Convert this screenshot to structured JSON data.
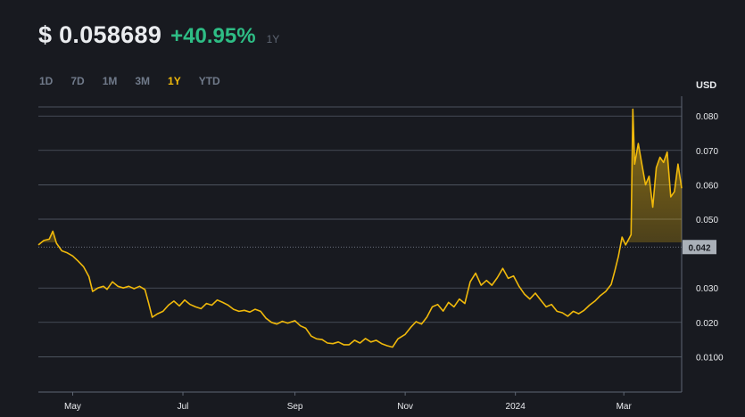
{
  "header": {
    "price": "$ 0.058689",
    "change": "+40.95%",
    "period": "1Y"
  },
  "tabs": [
    "1D",
    "7D",
    "1M",
    "3M",
    "1Y",
    "YTD"
  ],
  "active_tab": "1Y",
  "colors": {
    "line": "#f0b90b",
    "up": "#2ebd85",
    "grid": "#5e6673",
    "background": "#181a20"
  },
  "chart_data": {
    "type": "area",
    "title": "",
    "xlabel": "",
    "ylabel": "USD",
    "ylim": [
      0.0,
      0.0854
    ],
    "yticks": [
      {
        "value": 0.08,
        "label": "0.080"
      },
      {
        "value": 0.07,
        "label": "0.070"
      },
      {
        "value": 0.06,
        "label": "0.060"
      },
      {
        "value": 0.05,
        "label": "0.050"
      },
      {
        "value": 0.03,
        "label": "0.030"
      },
      {
        "value": 0.02,
        "label": "0.020"
      },
      {
        "value": 0.01,
        "label": "0.0100"
      }
    ],
    "current_marker": {
      "value": 0.0419,
      "label": "0.042"
    },
    "xticks": [
      {
        "date": "2023-05-01",
        "label": "May"
      },
      {
        "date": "2023-07-01",
        "label": "Jul"
      },
      {
        "date": "2023-09-01",
        "label": "Sep"
      },
      {
        "date": "2023-11-01",
        "label": "Nov"
      },
      {
        "date": "2024-01-01",
        "label": "2024"
      },
      {
        "date": "2024-03-01",
        "label": "Mar"
      }
    ],
    "xrange": [
      "2023-04-12",
      "2024-04-02"
    ],
    "series": [
      {
        "values": [
          [
            "2023-04-12",
            0.0425
          ],
          [
            "2023-04-15",
            0.0438
          ],
          [
            "2023-04-18",
            0.0442
          ],
          [
            "2023-04-20",
            0.0465
          ],
          [
            "2023-04-22",
            0.043
          ],
          [
            "2023-04-25",
            0.0408
          ],
          [
            "2023-04-28",
            0.0402
          ],
          [
            "2023-05-01",
            0.0393
          ],
          [
            "2023-05-04",
            0.0378
          ],
          [
            "2023-05-07",
            0.0362
          ],
          [
            "2023-05-10",
            0.0333
          ],
          [
            "2023-05-12",
            0.029
          ],
          [
            "2023-05-15",
            0.03
          ],
          [
            "2023-05-18",
            0.0305
          ],
          [
            "2023-05-20",
            0.0296
          ],
          [
            "2023-05-23",
            0.0318
          ],
          [
            "2023-05-26",
            0.0305
          ],
          [
            "2023-05-29",
            0.03
          ],
          [
            "2023-06-01",
            0.0305
          ],
          [
            "2023-06-04",
            0.0298
          ],
          [
            "2023-06-07",
            0.0305
          ],
          [
            "2023-06-10",
            0.0295
          ],
          [
            "2023-06-12",
            0.0257
          ],
          [
            "2023-06-14",
            0.0215
          ],
          [
            "2023-06-17",
            0.0225
          ],
          [
            "2023-06-20",
            0.0232
          ],
          [
            "2023-06-23",
            0.025
          ],
          [
            "2023-06-26",
            0.0262
          ],
          [
            "2023-06-29",
            0.0248
          ],
          [
            "2023-07-02",
            0.0265
          ],
          [
            "2023-07-05",
            0.0252
          ],
          [
            "2023-07-08",
            0.0245
          ],
          [
            "2023-07-11",
            0.024
          ],
          [
            "2023-07-14",
            0.0255
          ],
          [
            "2023-07-17",
            0.025
          ],
          [
            "2023-07-20",
            0.0265
          ],
          [
            "2023-07-23",
            0.0258
          ],
          [
            "2023-07-26",
            0.025
          ],
          [
            "2023-07-29",
            0.0238
          ],
          [
            "2023-08-01",
            0.0232
          ],
          [
            "2023-08-04",
            0.0235
          ],
          [
            "2023-08-07",
            0.023
          ],
          [
            "2023-08-10",
            0.0238
          ],
          [
            "2023-08-13",
            0.0232
          ],
          [
            "2023-08-16",
            0.0212
          ],
          [
            "2023-08-19",
            0.02
          ],
          [
            "2023-08-22",
            0.0195
          ],
          [
            "2023-08-25",
            0.0203
          ],
          [
            "2023-08-28",
            0.0198
          ],
          [
            "2023-09-01",
            0.0205
          ],
          [
            "2023-09-04",
            0.019
          ],
          [
            "2023-09-07",
            0.0183
          ],
          [
            "2023-09-10",
            0.016
          ],
          [
            "2023-09-13",
            0.0152
          ],
          [
            "2023-09-16",
            0.015
          ],
          [
            "2023-09-19",
            0.014
          ],
          [
            "2023-09-22",
            0.0138
          ],
          [
            "2023-09-25",
            0.0143
          ],
          [
            "2023-09-28",
            0.0135
          ],
          [
            "2023-10-01",
            0.0135
          ],
          [
            "2023-10-04",
            0.0148
          ],
          [
            "2023-10-07",
            0.014
          ],
          [
            "2023-10-10",
            0.0153
          ],
          [
            "2023-10-13",
            0.0143
          ],
          [
            "2023-10-16",
            0.0148
          ],
          [
            "2023-10-19",
            0.0138
          ],
          [
            "2023-10-22",
            0.0132
          ],
          [
            "2023-10-25",
            0.0128
          ],
          [
            "2023-10-28",
            0.0152
          ],
          [
            "2023-11-01",
            0.0165
          ],
          [
            "2023-11-04",
            0.0185
          ],
          [
            "2023-11-07",
            0.0202
          ],
          [
            "2023-11-10",
            0.0195
          ],
          [
            "2023-11-13",
            0.0215
          ],
          [
            "2023-11-16",
            0.0245
          ],
          [
            "2023-11-19",
            0.0252
          ],
          [
            "2023-11-22",
            0.0233
          ],
          [
            "2023-11-25",
            0.0258
          ],
          [
            "2023-11-28",
            0.0245
          ],
          [
            "2023-12-01",
            0.0268
          ],
          [
            "2023-12-04",
            0.0255
          ],
          [
            "2023-12-07",
            0.0318
          ],
          [
            "2023-12-10",
            0.0343
          ],
          [
            "2023-12-13",
            0.0308
          ],
          [
            "2023-12-16",
            0.0322
          ],
          [
            "2023-12-19",
            0.0308
          ],
          [
            "2023-12-22",
            0.033
          ],
          [
            "2023-12-25",
            0.0357
          ],
          [
            "2023-12-28",
            0.0328
          ],
          [
            "2023-12-31",
            0.0335
          ],
          [
            "2024-01-03",
            0.0305
          ],
          [
            "2024-01-06",
            0.0282
          ],
          [
            "2024-01-09",
            0.0268
          ],
          [
            "2024-01-12",
            0.0285
          ],
          [
            "2024-01-15",
            0.0265
          ],
          [
            "2024-01-18",
            0.0245
          ],
          [
            "2024-01-21",
            0.0252
          ],
          [
            "2024-01-24",
            0.0232
          ],
          [
            "2024-01-27",
            0.0228
          ],
          [
            "2024-01-30",
            0.0218
          ],
          [
            "2024-02-02",
            0.0232
          ],
          [
            "2024-02-05",
            0.0225
          ],
          [
            "2024-02-08",
            0.0235
          ],
          [
            "2024-02-11",
            0.025
          ],
          [
            "2024-02-14",
            0.0262
          ],
          [
            "2024-02-17",
            0.0278
          ],
          [
            "2024-02-20",
            0.029
          ],
          [
            "2024-02-23",
            0.031
          ],
          [
            "2024-02-25",
            0.035
          ],
          [
            "2024-02-27",
            0.0392
          ],
          [
            "2024-02-29",
            0.0448
          ],
          [
            "2024-03-02",
            0.0425
          ],
          [
            "2024-03-04",
            0.0445
          ],
          [
            "2024-03-05",
            0.0455
          ],
          [
            "2024-03-06",
            0.082
          ],
          [
            "2024-03-07",
            0.066
          ],
          [
            "2024-03-09",
            0.072
          ],
          [
            "2024-03-11",
            0.066
          ],
          [
            "2024-03-13",
            0.06
          ],
          [
            "2024-03-15",
            0.0625
          ],
          [
            "2024-03-17",
            0.0535
          ],
          [
            "2024-03-19",
            0.065
          ],
          [
            "2024-03-21",
            0.068
          ],
          [
            "2024-03-23",
            0.0665
          ],
          [
            "2024-03-25",
            0.0695
          ],
          [
            "2024-03-27",
            0.0565
          ],
          [
            "2024-03-29",
            0.058
          ],
          [
            "2024-03-31",
            0.066
          ],
          [
            "2024-04-02",
            0.059
          ]
        ]
      }
    ]
  }
}
